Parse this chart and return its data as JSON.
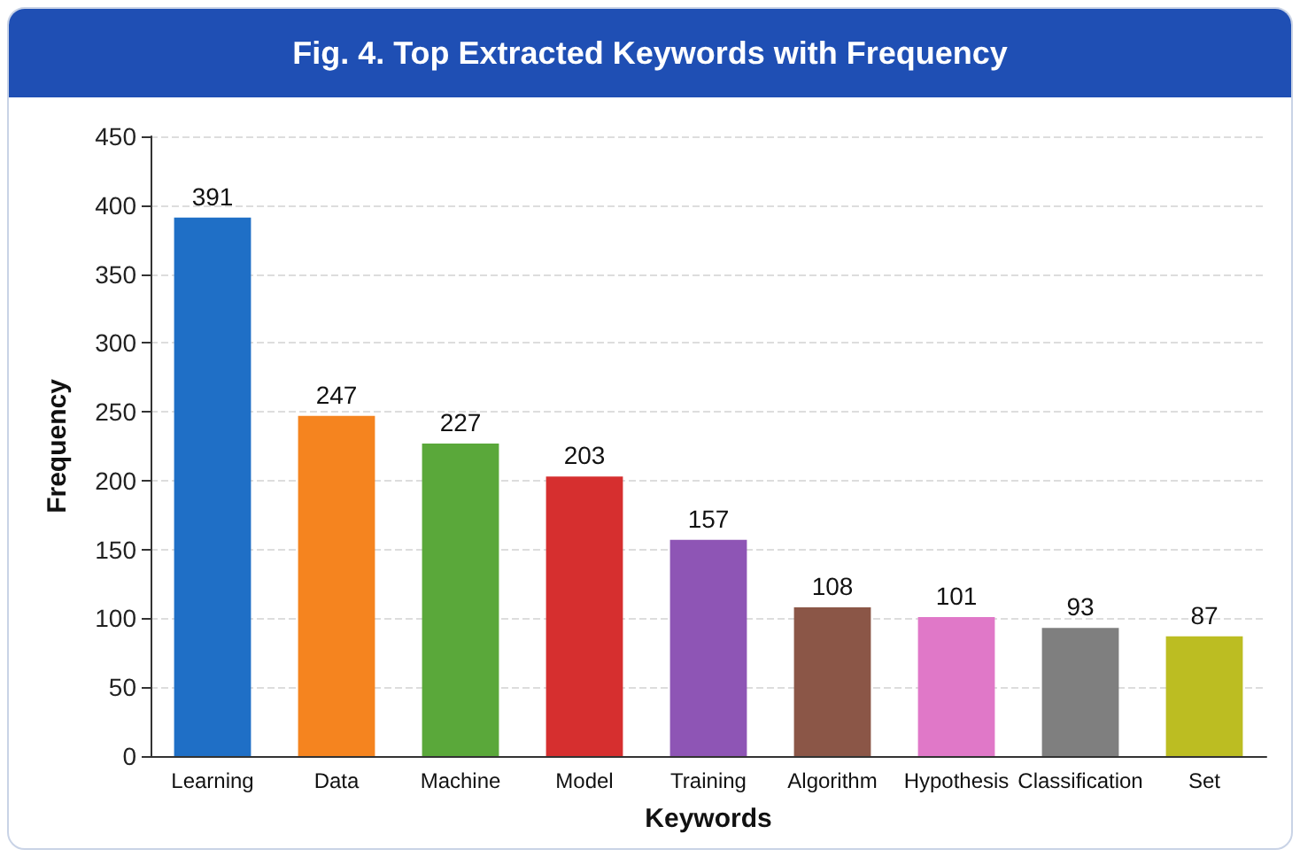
{
  "chart_data": {
    "type": "bar",
    "title": "Fig. 4. Top Extracted Keywords with Frequency",
    "xlabel": "Keywords",
    "ylabel": "Frequency",
    "categories": [
      "Learning",
      "Data",
      "Machine",
      "Model",
      "Training",
      "Algorithm",
      "Hypothesis",
      "Classification",
      "Set"
    ],
    "values": [
      391,
      247,
      227,
      203,
      157,
      108,
      101,
      93,
      87
    ],
    "colors": [
      "#1f6fc6",
      "#f5841f",
      "#5aa83a",
      "#d62f2f",
      "#8e55b5",
      "#8b5647",
      "#e078c8",
      "#7f7f7f",
      "#bcbd22"
    ],
    "ylim": [
      0,
      450
    ],
    "yticks": [
      0,
      50,
      100,
      150,
      200,
      250,
      300,
      350,
      400,
      450
    ],
    "grid": "y",
    "data_labels": true
  }
}
